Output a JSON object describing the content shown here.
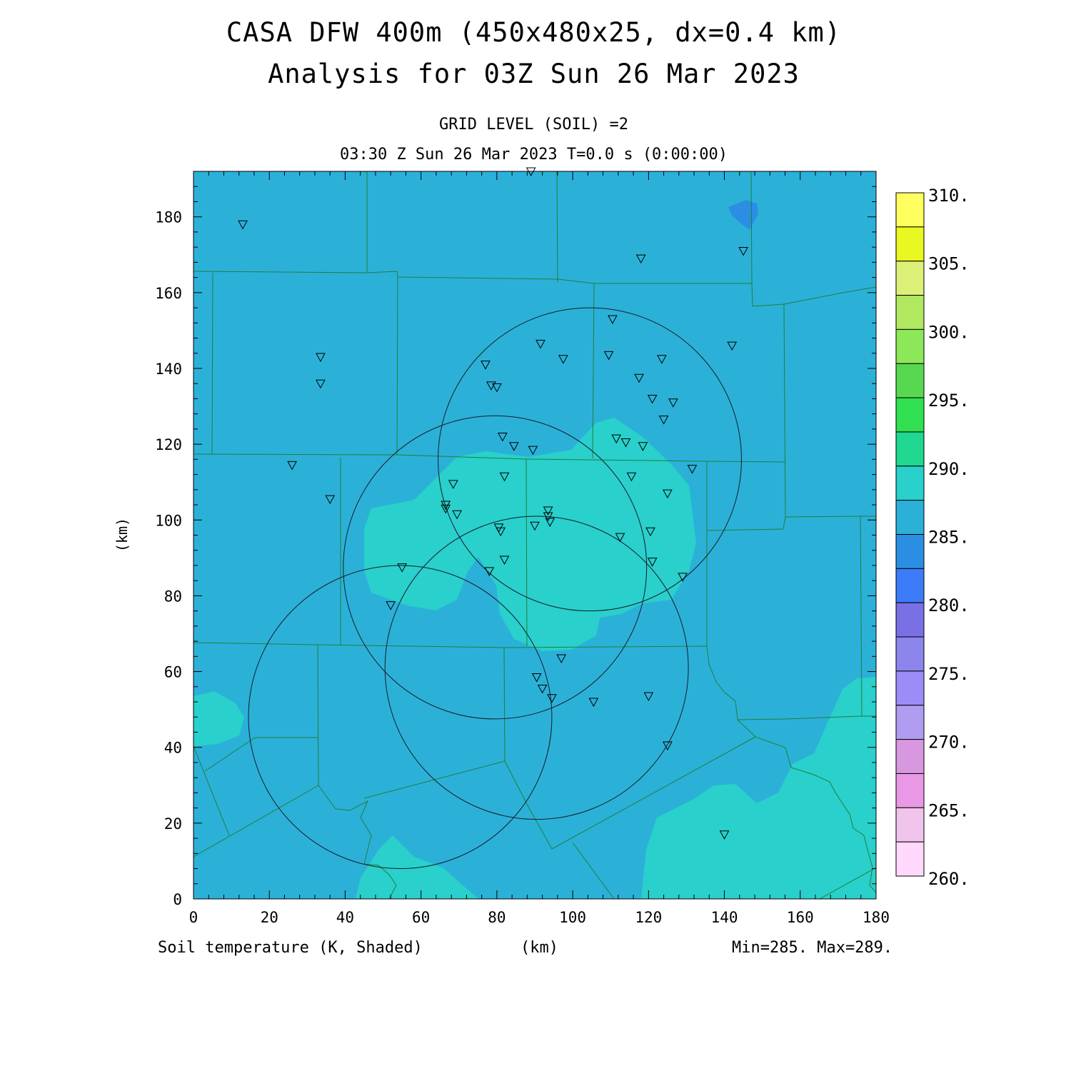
{
  "title": "CASA DFW 400m (450x480x25, dx=0.4 km)",
  "subtitle": "Analysis for 03Z Sun 26 Mar 2023",
  "level_label": "GRID LEVEL (SOIL) =2",
  "time_label": "03:30 Z Sun 26 Mar 2023   T=0.0 s (0:00:00)",
  "variable_label": "Soil temperature (K, Shaded)",
  "x_unit_label": "(km)",
  "y_unit_label": "(km)",
  "minmax_label": "Min=285. Max=289.",
  "colors": {
    "base_field": "#2bb1d8",
    "warm_field": "#29d0cc",
    "cold_spot": "#2a8fe2",
    "county_lines": "#1f7f3a"
  },
  "chart_data": {
    "type": "heatmap",
    "xlim": [
      0,
      180
    ],
    "ylim": [
      0,
      192
    ],
    "x_ticks": [
      0,
      20,
      40,
      60,
      80,
      100,
      120,
      140,
      160,
      180
    ],
    "y_ticks": [
      0,
      20,
      40,
      60,
      80,
      100,
      120,
      140,
      160,
      180
    ],
    "x_tick_labels": [
      "0",
      "20",
      "40",
      "60",
      "80",
      "100",
      "120",
      "140",
      "160",
      "180"
    ],
    "y_tick_labels": [
      "0",
      "20",
      "40",
      "60",
      "80",
      "100",
      "120",
      "140",
      "160",
      "180"
    ],
    "colorbar": {
      "labels": [
        "310.",
        "305.",
        "300.",
        "295.",
        "290.",
        "285.",
        "280.",
        "275.",
        "270.",
        "265.",
        "260."
      ],
      "colors_top_to_bottom": [
        "#ffff60",
        "#e8f820",
        "#dcf078",
        "#b0e860",
        "#8ce858",
        "#58d850",
        "#30e050",
        "#20d890",
        "#29d0cc",
        "#2bb1d8",
        "#2a8fe2",
        "#3c7cf8",
        "#7a70e6",
        "#8c86ec",
        "#9c8cf8",
        "#b09cf0",
        "#d898e0",
        "#e898e4",
        "#f0c4ec",
        "#ffd8fc"
      ]
    },
    "radar_rings": [
      {
        "center": [
          104.5,
          116
        ],
        "radius": 40
      },
      {
        "center": [
          79.5,
          87.5
        ],
        "radius": 40
      },
      {
        "center": [
          90.5,
          61
        ],
        "radius": 40
      },
      {
        "center": [
          54.5,
          48
        ],
        "radius": 40
      }
    ],
    "stations": [
      [
        13,
        178
      ],
      [
        89,
        192
      ],
      [
        118,
        169
      ],
      [
        145,
        171
      ],
      [
        33.5,
        143
      ],
      [
        33.5,
        136
      ],
      [
        142,
        146
      ],
      [
        110.5,
        153
      ],
      [
        91.5,
        146.5
      ],
      [
        97.5,
        142.5
      ],
      [
        109.5,
        143.5
      ],
      [
        123.5,
        142.5
      ],
      [
        77,
        141
      ],
      [
        78.5,
        135.5
      ],
      [
        80,
        135
      ],
      [
        117.5,
        137.5
      ],
      [
        121,
        132
      ],
      [
        126.5,
        131
      ],
      [
        124,
        126.5
      ],
      [
        81.5,
        122
      ],
      [
        84.5,
        119.5
      ],
      [
        89.5,
        118.5
      ],
      [
        111.5,
        121.5
      ],
      [
        114,
        120.5
      ],
      [
        118.5,
        119.5
      ],
      [
        26,
        114.5
      ],
      [
        131.5,
        113.5
      ],
      [
        82,
        111.5
      ],
      [
        115.5,
        111.5
      ],
      [
        68.5,
        109.5
      ],
      [
        125,
        107
      ],
      [
        36,
        105.5
      ],
      [
        66.5,
        104
      ],
      [
        66.5,
        103
      ],
      [
        69.5,
        101.5
      ],
      [
        93.5,
        102.5
      ],
      [
        93.5,
        101
      ],
      [
        94,
        99.5
      ],
      [
        80.5,
        98
      ],
      [
        81,
        97
      ],
      [
        90,
        98.5
      ],
      [
        112.5,
        95.5
      ],
      [
        120.5,
        97
      ],
      [
        82,
        89.5
      ],
      [
        121,
        89
      ],
      [
        78,
        86.5
      ],
      [
        129,
        85
      ],
      [
        55,
        87.5
      ],
      [
        52,
        77.5
      ],
      [
        97,
        63.5
      ],
      [
        90.5,
        58.5
      ],
      [
        92,
        55.5
      ],
      [
        94.5,
        53
      ],
      [
        105.5,
        52
      ],
      [
        120,
        53.5
      ],
      [
        125,
        40.5
      ],
      [
        140,
        17
      ]
    ]
  }
}
